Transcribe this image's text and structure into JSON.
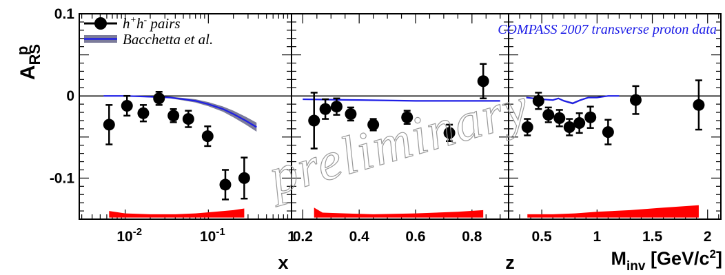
{
  "chart_data": {
    "type": "scatter",
    "ylabel_main": "A",
    "ylabel_sup": "p",
    "ylabel_sub": "RS",
    "ylim": [
      -0.15,
      0.1
    ],
    "yticks": [
      {
        "v": 0.1,
        "label": "0.1"
      },
      {
        "v": 0,
        "label": "0"
      },
      {
        "v": -0.1,
        "label": "-0.1"
      }
    ],
    "legend": {
      "position": "top-left",
      "entries": [
        {
          "label_main": "h",
          "sup1": "+",
          "mid": "h",
          "sup2": "-",
          "tail": " pairs",
          "marker": "circle"
        },
        {
          "label": "Bacchetta et al.",
          "marker": "band"
        }
      ]
    },
    "experiment_label": "COMPASS 2007 transverse proton data",
    "watermark": "preliminary",
    "colors": {
      "data": "#000000",
      "theory_line": "#1e1ee6",
      "theory_band": "#7c7c9a",
      "syst_band": "#ff0000",
      "exp_label": "#1a1ae6"
    },
    "panels": [
      {
        "name": "x",
        "xlabel": "x",
        "xscale": "log",
        "xlim": [
          0.0028,
          1.0
        ],
        "ticklabels": [
          {
            "v": 0.01,
            "base": "10",
            "exp": "-2"
          },
          {
            "v": 0.1,
            "base": "10",
            "exp": "-1"
          },
          {
            "v": 1,
            "text": "1"
          }
        ],
        "points": [
          {
            "x": 0.0064,
            "y": -0.035,
            "err": 0.024
          },
          {
            "x": 0.0105,
            "y": -0.012,
            "err": 0.012
          },
          {
            "x": 0.0165,
            "y": -0.021,
            "err": 0.01
          },
          {
            "x": 0.0255,
            "y": -0.003,
            "err": 0.008
          },
          {
            "x": 0.038,
            "y": -0.024,
            "err": 0.008
          },
          {
            "x": 0.0575,
            "y": -0.028,
            "err": 0.01
          },
          {
            "x": 0.098,
            "y": -0.049,
            "err": 0.012
          },
          {
            "x": 0.16,
            "y": -0.108,
            "err": 0.018
          },
          {
            "x": 0.27,
            "y": -0.1,
            "err": 0.025
          }
        ],
        "theory": [
          {
            "x": 0.0055,
            "y": 0.0
          },
          {
            "x": 0.01,
            "y": 0.0
          },
          {
            "x": 0.02,
            "y": -0.001
          },
          {
            "x": 0.035,
            "y": -0.002
          },
          {
            "x": 0.05,
            "y": -0.004
          },
          {
            "x": 0.07,
            "y": -0.006
          },
          {
            "x": 0.1,
            "y": -0.01
          },
          {
            "x": 0.15,
            "y": -0.016
          },
          {
            "x": 0.2,
            "y": -0.022
          },
          {
            "x": 0.28,
            "y": -0.03
          },
          {
            "x": 0.38,
            "y": -0.038
          }
        ],
        "theory_halfwidth": [
          0.0005,
          0.0005,
          0.0008,
          0.001,
          0.0015,
          0.002,
          0.0025,
          0.0032,
          0.004,
          0.0048,
          0.0055
        ],
        "syst": [
          {
            "x": 0.0064,
            "h": 0.008
          },
          {
            "x": 0.01,
            "h": 0.005
          },
          {
            "x": 0.02,
            "h": 0.004
          },
          {
            "x": 0.04,
            "h": 0.004
          },
          {
            "x": 0.07,
            "h": 0.005
          },
          {
            "x": 0.12,
            "h": 0.007
          },
          {
            "x": 0.2,
            "h": 0.009
          },
          {
            "x": 0.27,
            "h": 0.011
          }
        ]
      },
      {
        "name": "z",
        "xlabel": "z",
        "xscale": "linear",
        "xlim": [
          0.16,
          0.93
        ],
        "ticklabels": [
          {
            "v": 0.2,
            "text": "0.2"
          },
          {
            "v": 0.4,
            "text": "0.4"
          },
          {
            "v": 0.6,
            "text": "0.6"
          },
          {
            "v": 0.8,
            "text": "0.8"
          }
        ],
        "points": [
          {
            "x": 0.24,
            "y": -0.03,
            "err": 0.034
          },
          {
            "x": 0.28,
            "y": -0.016,
            "err": 0.012
          },
          {
            "x": 0.32,
            "y": -0.013,
            "err": 0.01
          },
          {
            "x": 0.37,
            "y": -0.022,
            "err": 0.008
          },
          {
            "x": 0.45,
            "y": -0.035,
            "err": 0.007
          },
          {
            "x": 0.57,
            "y": -0.026,
            "err": 0.008
          },
          {
            "x": 0.72,
            "y": -0.045,
            "err": 0.01
          },
          {
            "x": 0.84,
            "y": 0.018,
            "err": 0.021
          }
        ],
        "theory": [
          {
            "x": 0.2,
            "y": -0.004
          },
          {
            "x": 0.4,
            "y": -0.005
          },
          {
            "x": 0.6,
            "y": -0.006
          },
          {
            "x": 0.75,
            "y": -0.006
          },
          {
            "x": 0.9,
            "y": -0.006
          }
        ],
        "theory_halfwidth": [
          0.0005,
          0.0005,
          0.0005,
          0.0005,
          0.0005
        ],
        "syst": [
          {
            "x": 0.24,
            "h": 0.012
          },
          {
            "x": 0.27,
            "h": 0.006
          },
          {
            "x": 0.35,
            "h": 0.005
          },
          {
            "x": 0.45,
            "h": 0.004
          },
          {
            "x": 0.6,
            "h": 0.005
          },
          {
            "x": 0.75,
            "h": 0.007
          },
          {
            "x": 0.84,
            "h": 0.009
          }
        ]
      },
      {
        "name": "minv",
        "xlabel": "M",
        "xlabel_sub": "inv",
        "xlabel_tail": " [GeV/c",
        "xlabel_sup": "2",
        "xlabel_end": "]",
        "xscale": "linear",
        "xlim": [
          0.2,
          2.12
        ],
        "ticklabels": [
          {
            "v": 0.5,
            "text": "0.5"
          },
          {
            "v": 1,
            "text": "1"
          },
          {
            "v": 1.5,
            "text": "1.5"
          },
          {
            "v": 2,
            "text": "2"
          }
        ],
        "points": [
          {
            "x": 0.37,
            "y": -0.038,
            "err": 0.01
          },
          {
            "x": 0.47,
            "y": -0.006,
            "err": 0.01
          },
          {
            "x": 0.56,
            "y": -0.023,
            "err": 0.009
          },
          {
            "x": 0.66,
            "y": -0.027,
            "err": 0.01
          },
          {
            "x": 0.75,
            "y": -0.038,
            "err": 0.01
          },
          {
            "x": 0.84,
            "y": -0.033,
            "err": 0.012
          },
          {
            "x": 0.94,
            "y": -0.026,
            "err": 0.013
          },
          {
            "x": 1.1,
            "y": -0.044,
            "err": 0.015
          },
          {
            "x": 1.35,
            "y": -0.005,
            "err": 0.017
          },
          {
            "x": 1.92,
            "y": -0.011,
            "err": 0.03
          }
        ],
        "theory": [
          {
            "x": 0.36,
            "y": -0.002
          },
          {
            "x": 0.5,
            "y": -0.004
          },
          {
            "x": 0.6,
            "y": -0.005
          },
          {
            "x": 0.65,
            "y": -0.003
          },
          {
            "x": 0.7,
            "y": -0.006
          },
          {
            "x": 0.78,
            "y": -0.009
          },
          {
            "x": 0.85,
            "y": -0.005
          },
          {
            "x": 0.92,
            "y": -0.002
          },
          {
            "x": 1.0,
            "y": -0.002
          },
          {
            "x": 1.1,
            "y": 0.0
          },
          {
            "x": 1.2,
            "y": 0.0
          }
        ],
        "theory_halfwidth": [
          0.0005,
          0.0005,
          0.0008,
          0.0008,
          0.001,
          0.0012,
          0.001,
          0.0008,
          0.0005,
          0.0005,
          0.0005
        ],
        "syst": [
          {
            "x": 0.37,
            "h": 0.004
          },
          {
            "x": 0.6,
            "h": 0.004
          },
          {
            "x": 0.8,
            "h": 0.005
          },
          {
            "x": 1.0,
            "h": 0.007
          },
          {
            "x": 1.3,
            "h": 0.009
          },
          {
            "x": 1.6,
            "h": 0.012
          },
          {
            "x": 1.92,
            "h": 0.015
          }
        ]
      }
    ]
  }
}
